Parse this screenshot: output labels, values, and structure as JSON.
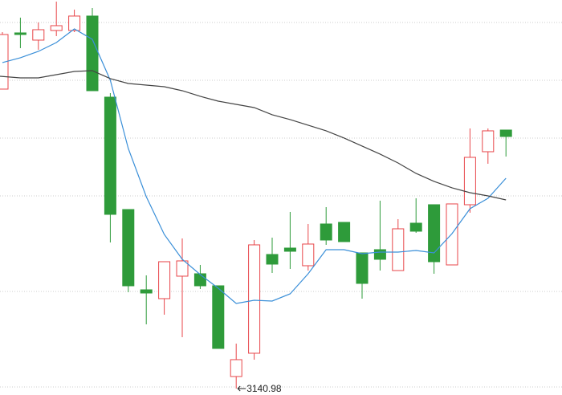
{
  "chart_data": {
    "type": "candlestick",
    "annotation": "3140.98",
    "ylim": [
      3132.98,
      3624.98
    ],
    "up_color": "#e8464a",
    "down_color": "#2e9b3a",
    "open": [
      3514,
      3584,
      3575,
      3587,
      3587,
      3605,
      3504,
      3364,
      3264,
      3253,
      3281,
      3284,
      3269,
      3156,
      3185,
      3308,
      3316,
      3294,
      3346,
      3348,
      3310,
      3314,
      3288,
      3347,
      3370,
      3295,
      3370,
      3436,
      3463
    ],
    "close": [
      3582,
      3582,
      3588,
      3593,
      3605,
      3512,
      3358,
      3269,
      3260,
      3299,
      3300,
      3269,
      3191,
      3177,
      3320,
      3296,
      3312,
      3321,
      3326,
      3324,
      3272,
      3302,
      3340,
      3337,
      3299,
      3371,
      3429,
      3462,
      3455
    ],
    "high": [
      3585,
      3603,
      3597,
      3623,
      3613,
      3615,
      3509,
      3364,
      3282,
      3299,
      3328,
      3295,
      3269,
      3197,
      3326,
      3329,
      3361,
      3346,
      3367,
      3348,
      3310,
      3375,
      3352,
      3378,
      3370,
      3371,
      3465,
      3465,
      3463
    ],
    "low": [
      3514,
      3565,
      3563,
      3580,
      3585,
      3512,
      3323,
      3261,
      3221,
      3233,
      3205,
      3265,
      3191,
      3140.98,
      3177,
      3285,
      3290,
      3288,
      3320,
      3324,
      3253,
      3288,
      3288,
      3335,
      3284,
      3295,
      3360,
      3421,
      3430
    ],
    "series": [
      {
        "color": "#3a8fd8",
        "values": [
          3547,
          3553,
          3561,
          3572,
          3589,
          3576,
          3525,
          3440,
          3380,
          3333,
          3302,
          3283,
          3266,
          3247,
          3251,
          3250,
          3259,
          3284,
          3314,
          3314,
          3309,
          3311,
          3311,
          3313,
          3310,
          3334,
          3365,
          3378,
          3403
        ]
      },
      {
        "color": "#444444",
        "values": [
          3530,
          3528,
          3528,
          3532,
          3536,
          3537,
          3527,
          3521,
          3519,
          3517,
          3512,
          3505,
          3499,
          3495,
          3491,
          3482,
          3476,
          3469,
          3462,
          3453,
          3443,
          3433,
          3422,
          3409,
          3399,
          3391,
          3385,
          3381,
          3376
        ]
      }
    ]
  }
}
